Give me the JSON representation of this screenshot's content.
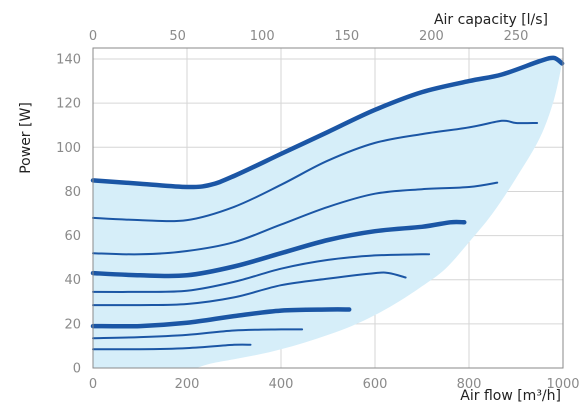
{
  "chart_data": {
    "type": "line",
    "x_axis": {
      "label": "Air flow [m³/h]",
      "range": [
        0,
        1000
      ],
      "ticks": [
        0,
        200,
        400,
        600,
        800,
        1000
      ]
    },
    "x2_axis": {
      "label": "Air capacity [l/s]",
      "range": [
        0,
        277.78
      ],
      "ticks": [
        0,
        50,
        100,
        150,
        200,
        250
      ]
    },
    "y_axis": {
      "label": "Power [W]",
      "range": [
        0,
        145
      ],
      "ticks": [
        0,
        20,
        40,
        60,
        80,
        100,
        120,
        140
      ]
    },
    "grid": true,
    "colors": {
      "line": "#1b56a5",
      "area": "#d6eef9",
      "grid": "#d6d6d6",
      "tick": "#8a8a8a"
    },
    "envelope": {
      "upper": [
        [
          0,
          85
        ],
        [
          100,
          83.5
        ],
        [
          200,
          82
        ],
        [
          250,
          83
        ],
        [
          300,
          87
        ],
        [
          400,
          97
        ],
        [
          500,
          107
        ],
        [
          600,
          117
        ],
        [
          700,
          125
        ],
        [
          800,
          130
        ],
        [
          870,
          133
        ],
        [
          950,
          139
        ],
        [
          980,
          140.5
        ],
        [
          998,
          138
        ]
      ],
      "lower": [
        [
          998,
          138
        ],
        [
          980,
          121
        ],
        [
          950,
          104
        ],
        [
          900,
          86
        ],
        [
          850,
          70
        ],
        [
          800,
          57
        ],
        [
          750,
          45
        ],
        [
          700,
          37
        ],
        [
          650,
          30
        ],
        [
          600,
          24
        ],
        [
          550,
          19
        ],
        [
          500,
          15
        ],
        [
          450,
          11.5
        ],
        [
          400,
          8.5
        ],
        [
          350,
          6
        ],
        [
          300,
          4
        ],
        [
          250,
          2
        ],
        [
          220,
          0
        ]
      ]
    },
    "series": [
      {
        "weight": "bold",
        "values": [
          [
            0,
            85
          ],
          [
            100,
            83.5
          ],
          [
            200,
            82
          ],
          [
            250,
            83
          ],
          [
            300,
            87
          ],
          [
            400,
            97
          ],
          [
            500,
            107
          ],
          [
            600,
            117
          ],
          [
            700,
            125
          ],
          [
            800,
            130
          ],
          [
            870,
            133
          ],
          [
            950,
            139
          ],
          [
            980,
            140.5
          ],
          [
            998,
            138
          ]
        ]
      },
      {
        "weight": "thin",
        "values": [
          [
            0,
            68
          ],
          [
            100,
            67
          ],
          [
            200,
            67
          ],
          [
            300,
            73
          ],
          [
            400,
            83
          ],
          [
            500,
            94
          ],
          [
            600,
            102
          ],
          [
            700,
            106
          ],
          [
            800,
            109
          ],
          [
            870,
            112
          ],
          [
            900,
            111
          ],
          [
            945,
            111
          ]
        ]
      },
      {
        "weight": "thin",
        "values": [
          [
            0,
            52
          ],
          [
            100,
            51.5
          ],
          [
            200,
            53
          ],
          [
            300,
            57
          ],
          [
            400,
            65
          ],
          [
            500,
            73
          ],
          [
            600,
            79
          ],
          [
            700,
            81
          ],
          [
            800,
            82
          ],
          [
            860,
            84
          ]
        ]
      },
      {
        "weight": "bold",
        "values": [
          [
            0,
            43
          ],
          [
            100,
            42
          ],
          [
            200,
            42
          ],
          [
            300,
            46
          ],
          [
            400,
            52
          ],
          [
            500,
            58
          ],
          [
            600,
            62
          ],
          [
            700,
            64
          ],
          [
            760,
            66
          ],
          [
            790,
            66
          ]
        ]
      },
      {
        "weight": "thin",
        "values": [
          [
            0,
            34.5
          ],
          [
            100,
            34.5
          ],
          [
            200,
            35
          ],
          [
            300,
            39
          ],
          [
            400,
            45
          ],
          [
            500,
            49
          ],
          [
            600,
            51
          ],
          [
            700,
            51.5
          ],
          [
            715,
            51.5
          ]
        ]
      },
      {
        "weight": "thin",
        "values": [
          [
            0,
            28.5
          ],
          [
            100,
            28.5
          ],
          [
            200,
            29
          ],
          [
            300,
            32
          ],
          [
            400,
            37.5
          ],
          [
            500,
            40.5
          ],
          [
            600,
            43
          ],
          [
            630,
            43
          ],
          [
            665,
            41
          ]
        ]
      },
      {
        "weight": "bold",
        "values": [
          [
            0,
            19
          ],
          [
            100,
            19
          ],
          [
            200,
            20.5
          ],
          [
            300,
            23.5
          ],
          [
            400,
            26
          ],
          [
            500,
            26.5
          ],
          [
            545,
            26.5
          ]
        ]
      },
      {
        "weight": "thin",
        "values": [
          [
            0,
            13.5
          ],
          [
            100,
            14
          ],
          [
            200,
            15
          ],
          [
            300,
            17
          ],
          [
            400,
            17.5
          ],
          [
            445,
            17.5
          ]
        ]
      },
      {
        "weight": "thin",
        "values": [
          [
            0,
            8.5
          ],
          [
            100,
            8.5
          ],
          [
            200,
            9
          ],
          [
            300,
            10.5
          ],
          [
            335,
            10.5
          ]
        ]
      }
    ]
  }
}
